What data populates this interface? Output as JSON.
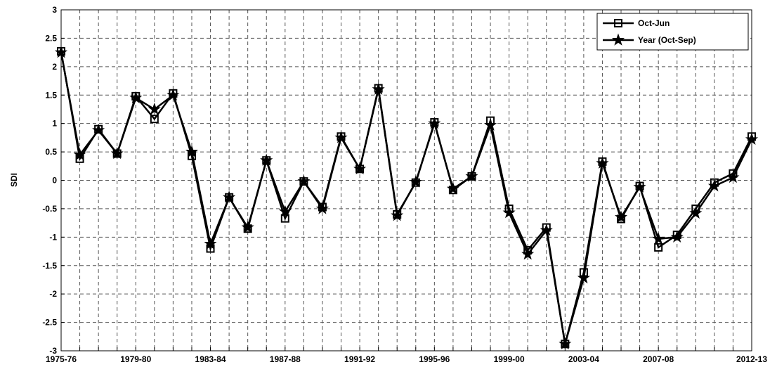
{
  "chart_data": {
    "type": "line",
    "ylabel": "SDI",
    "categories": [
      "1975-76",
      null,
      null,
      null,
      "1979-80",
      null,
      null,
      null,
      "1983-84",
      null,
      null,
      null,
      "1987-88",
      null,
      null,
      null,
      "1991-92",
      null,
      null,
      null,
      "1995-96",
      null,
      null,
      null,
      "1999-00",
      null,
      null,
      null,
      "2003-04",
      null,
      null,
      null,
      "2007-08",
      null,
      null,
      null,
      null,
      "2012-13"
    ],
    "series": [
      {
        "name": "Oct-Jun",
        "color": "#000000",
        "marker": "square",
        "values": [
          2.27,
          0.38,
          0.9,
          0.47,
          1.48,
          1.08,
          1.53,
          0.43,
          -1.2,
          -0.3,
          -0.85,
          0.35,
          -0.67,
          -0.02,
          -0.47,
          0.77,
          0.2,
          1.62,
          -0.6,
          -0.04,
          1.02,
          -0.17,
          0.07,
          1.05,
          -0.5,
          -1.23,
          -0.83,
          -2.88,
          -1.62,
          0.33,
          -0.68,
          -0.1,
          -1.18,
          -0.96,
          -0.5,
          -0.04,
          0.12,
          0.77
        ]
      },
      {
        "name": "Year (Oct-Sep)",
        "color": "#000000",
        "marker": "star",
        "values": [
          2.25,
          0.45,
          0.88,
          0.47,
          1.45,
          1.25,
          1.5,
          0.5,
          -1.12,
          -0.3,
          -0.83,
          0.35,
          -0.55,
          -0.02,
          -0.5,
          0.75,
          0.2,
          1.6,
          -0.62,
          -0.03,
          1.0,
          -0.15,
          0.07,
          0.97,
          -0.57,
          -1.3,
          -0.88,
          -2.88,
          -1.72,
          0.3,
          -0.65,
          -0.12,
          -1.03,
          -1.0,
          -0.58,
          -0.1,
          0.05,
          0.72
        ]
      }
    ],
    "ylim": [
      -3,
      3
    ],
    "yticks": [
      -3,
      -2.5,
      -2,
      -1.5,
      -1,
      -0.5,
      0,
      0.5,
      1,
      1.5,
      2,
      2.5,
      3
    ],
    "grid": true,
    "legend": "upper right"
  }
}
